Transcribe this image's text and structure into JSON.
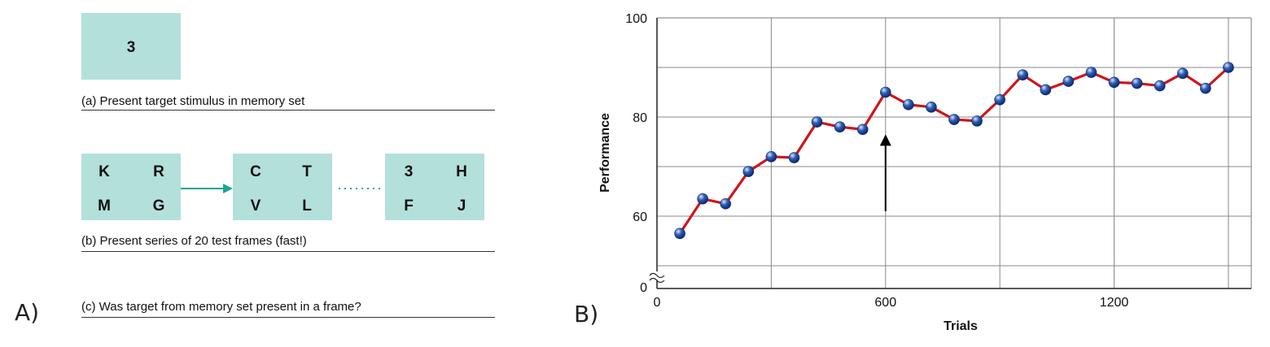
{
  "panel_a": {
    "label": "A)",
    "memory_frame": "3",
    "caption_a": "(a) Present target stimulus in memory set",
    "frames": [
      [
        "K",
        "R",
        "M",
        "G"
      ],
      [
        "C",
        "T",
        "V",
        "L"
      ],
      [
        "3",
        "H",
        "F",
        "J"
      ]
    ],
    "caption_b": "(b) Present series of 20 test frames (fast!)",
    "caption_c": "(c) Was target from memory set present in a frame?",
    "colors": {
      "frame": "#b3e0da",
      "arrow": "#1aa59a"
    }
  },
  "panel_b": {
    "label": "B)"
  },
  "chart_data": {
    "type": "line",
    "xlabel": "Trials",
    "ylabel": "Performance",
    "x_ticks": [
      "0",
      "600",
      "1200"
    ],
    "y_ticks": [
      "0",
      "60",
      "80",
      "100"
    ],
    "xlim": [
      0,
      1560
    ],
    "ylim_upper": [
      50,
      100
    ],
    "axis_break": true,
    "grid": true,
    "annotation": {
      "type": "arrow",
      "x": 600,
      "y_from": 61,
      "y_to": 76
    },
    "series": [
      {
        "color": "#d0141c",
        "marker_color": "#2e5fb8",
        "x": [
          60,
          120,
          180,
          240,
          300,
          360,
          420,
          480,
          540,
          600,
          660,
          720,
          780,
          840,
          900,
          960,
          1020,
          1080,
          1140,
          1200,
          1260,
          1320,
          1380,
          1440,
          1500
        ],
        "y": [
          56.5,
          63.5,
          62.5,
          69,
          72,
          71.8,
          79,
          78,
          77.5,
          85,
          82.5,
          82,
          79.5,
          79.2,
          83.5,
          88.5,
          85.5,
          87.2,
          89,
          87,
          86.8,
          86.3,
          88.8,
          85.8,
          90
        ]
      }
    ]
  }
}
